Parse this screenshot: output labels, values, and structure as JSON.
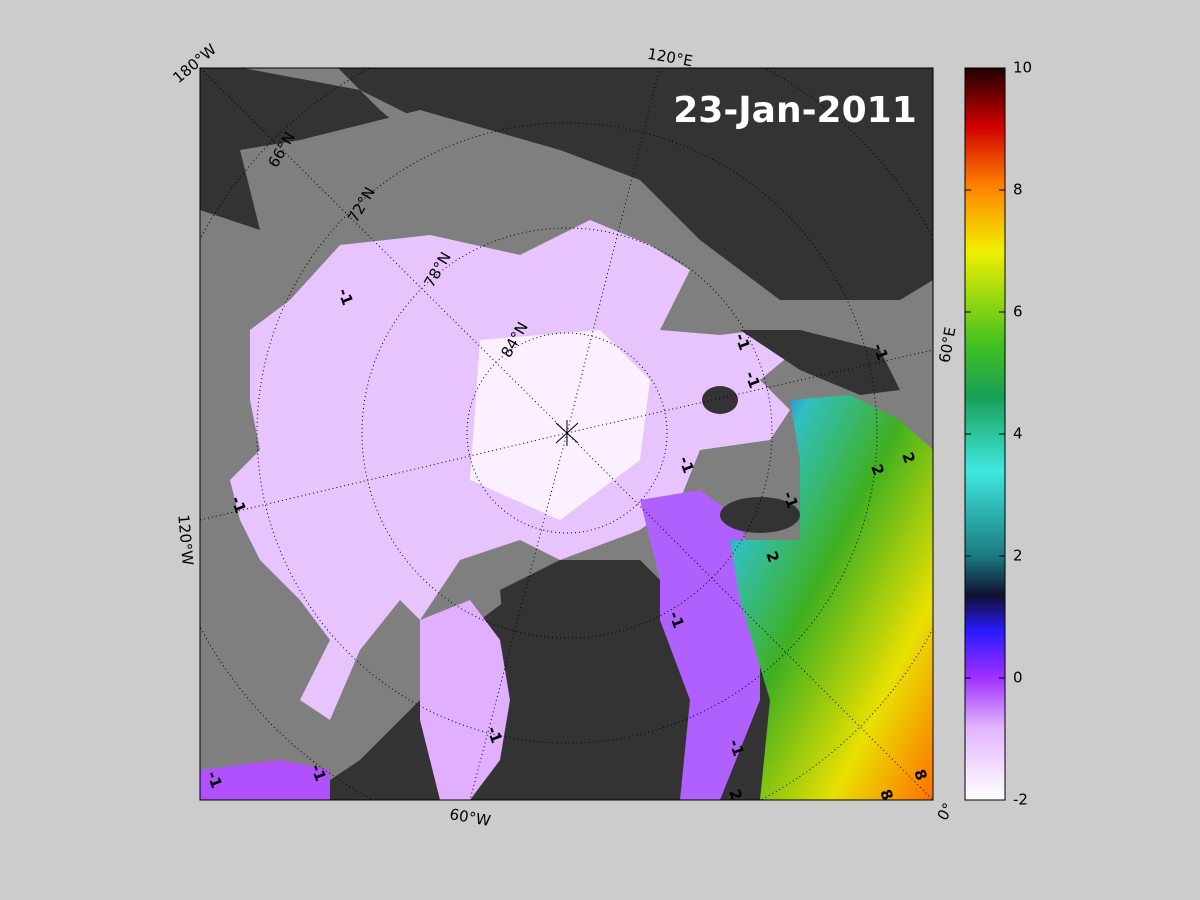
{
  "map": {
    "title": "23-Jan-2011",
    "longitude_labels": [
      "180°W",
      "120°E",
      "60°E",
      "0°",
      "60°W",
      "120°W"
    ],
    "latitude_labels": [
      "66°N",
      "72°N",
      "78°N",
      "84°N"
    ],
    "contour_labels": [
      "-1",
      "-1",
      "-1",
      "-1",
      "-1",
      "-1",
      "-1",
      "-1",
      "-1",
      "-1",
      "-1",
      "-1",
      "2",
      "2",
      "2",
      "2",
      "8",
      "8"
    ],
    "colorbar": {
      "lim": [
        -2,
        10
      ],
      "ticks": [
        -2,
        0,
        2,
        4,
        6,
        8,
        10
      ]
    }
  }
}
